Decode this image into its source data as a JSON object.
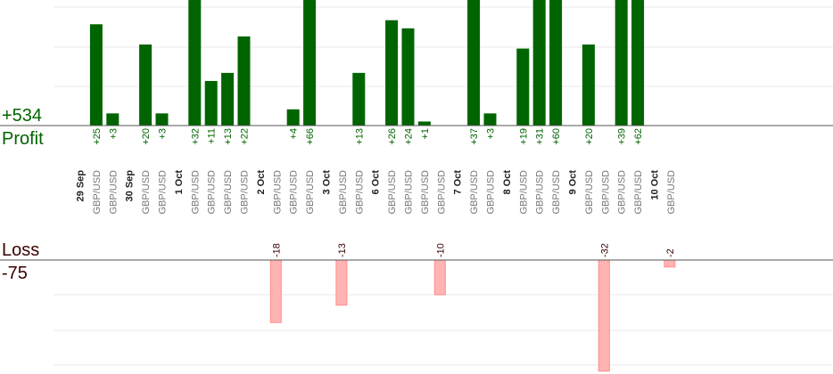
{
  "summary": {
    "profit_value": "+534",
    "profit_label": "Profit",
    "loss_label": "Loss",
    "loss_value": "-75"
  },
  "colors": {
    "profit_bar": "#006400",
    "loss_bar": "#ffb3b3",
    "profit_text": "#006400",
    "loss_text": "#3a0000",
    "axis": "#555555",
    "grid": "#e8e8e8"
  },
  "chart_data": {
    "type": "bar",
    "title": "",
    "pair_label": "GBP/USD",
    "profit_axis_max": 31,
    "loss_axis_max": 29,
    "grid": true,
    "clipped_note": "bars taller than the visible area are cut off at the top",
    "trades": [
      {
        "date": "29 Sep",
        "pair": "GBP/USD",
        "value": 25,
        "label": "+25"
      },
      {
        "date": "",
        "pair": "GBP/USD",
        "value": 3,
        "label": "+3"
      },
      {
        "date": "30 Sep",
        "pair": "GBP/USD",
        "value": 20,
        "label": "+20"
      },
      {
        "date": "",
        "pair": "GBP/USD",
        "value": 3,
        "label": "+3"
      },
      {
        "date": "1 Oct",
        "pair": "GBP/USD",
        "value": 32,
        "label": "+32"
      },
      {
        "date": "",
        "pair": "GBP/USD",
        "value": 11,
        "label": "+11"
      },
      {
        "date": "",
        "pair": "GBP/USD",
        "value": 13,
        "label": "+13"
      },
      {
        "date": "",
        "pair": "GBP/USD",
        "value": 22,
        "label": "+22"
      },
      {
        "date": "2 Oct",
        "pair": "GBP/USD",
        "value": -18,
        "label": "-18"
      },
      {
        "date": "",
        "pair": "GBP/USD",
        "value": 4,
        "label": "+4"
      },
      {
        "date": "",
        "pair": "GBP/USD",
        "value": 66,
        "label": "+66"
      },
      {
        "date": "3 Oct",
        "pair": "GBP/USD",
        "value": -13,
        "label": "-13"
      },
      {
        "date": "",
        "pair": "GBP/USD",
        "value": 13,
        "label": "+13"
      },
      {
        "date": "6 Oct",
        "pair": "GBP/USD",
        "value": 26,
        "label": "+26"
      },
      {
        "date": "",
        "pair": "GBP/USD",
        "value": 24,
        "label": "+24"
      },
      {
        "date": "",
        "pair": "GBP/USD",
        "value": 1,
        "label": "+1"
      },
      {
        "date": "",
        "pair": "GBP/USD",
        "value": -10,
        "label": "-10"
      },
      {
        "date": "7 Oct",
        "pair": "GBP/USD",
        "value": 37,
        "label": "+37"
      },
      {
        "date": "",
        "pair": "GBP/USD",
        "value": 3,
        "label": "+3"
      },
      {
        "date": "8 Oct",
        "pair": "GBP/USD",
        "value": 19,
        "label": "+19"
      },
      {
        "date": "",
        "pair": "GBP/USD",
        "value": 31,
        "label": "+31"
      },
      {
        "date": "",
        "pair": "GBP/USD",
        "value": 60,
        "label": "+60"
      },
      {
        "date": "9 Oct",
        "pair": "GBP/USD",
        "value": 20,
        "label": "+20"
      },
      {
        "date": "",
        "pair": "GBP/USD",
        "value": -32,
        "label": "-32"
      },
      {
        "date": "",
        "pair": "GBP/USD",
        "value": 39,
        "label": "+39"
      },
      {
        "date": "",
        "pair": "GBP/USD",
        "value": 62,
        "label": "+62"
      },
      {
        "date": "10 Oct",
        "pair": "GBP/USD",
        "value": -2,
        "label": "-2"
      }
    ]
  }
}
